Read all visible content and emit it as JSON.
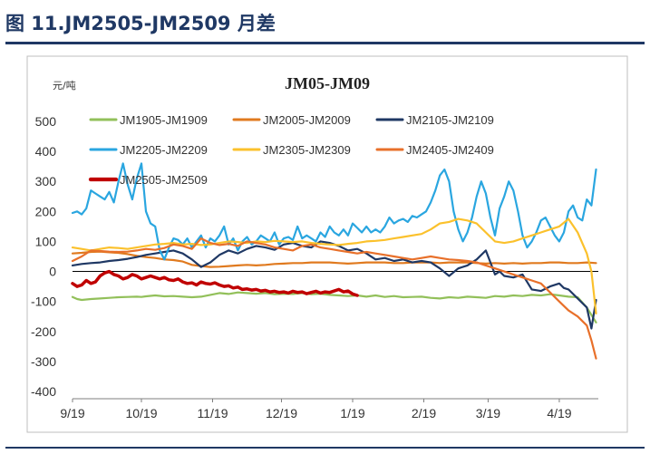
{
  "page": {
    "figure_title": "图 11.JM2505-JM2509 月差"
  },
  "chart_data": {
    "type": "line",
    "title": "JM05-JM09",
    "ylabel": "元/吨",
    "xlabel": "",
    "ylim": [
      -400,
      500
    ],
    "yticks": [
      500,
      400,
      300,
      200,
      100,
      0,
      -100,
      -200,
      -300,
      -400
    ],
    "xlim": [
      0,
      229
    ],
    "xticks": [
      {
        "label": "9/19",
        "x": 0
      },
      {
        "label": "10/19",
        "x": 30
      },
      {
        "label": "11/19",
        "x": 61
      },
      {
        "label": "12/19",
        "x": 91
      },
      {
        "label": "1/19",
        "x": 122
      },
      {
        "label": "2/19",
        "x": 153
      },
      {
        "label": "3/19",
        "x": 181
      },
      {
        "label": "4/19",
        "x": 212
      }
    ],
    "grid": false,
    "legend_position": "top",
    "series": [
      {
        "name": "JM1905-JM1909",
        "color": "#92c05a",
        "width": 2.2,
        "x": [
          0,
          2,
          4,
          8,
          12,
          16,
          20,
          24,
          28,
          30,
          32,
          36,
          40,
          44,
          48,
          52,
          56,
          60,
          64,
          68,
          72,
          76,
          80,
          84,
          88,
          92,
          96,
          100,
          104,
          108,
          112,
          116,
          120,
          124,
          128,
          132,
          136,
          140,
          144,
          148,
          152,
          156,
          160,
          164,
          168,
          172,
          176,
          180,
          184,
          188,
          192,
          196,
          200,
          204,
          208,
          212,
          216,
          220,
          224,
          228
        ],
        "y": [
          -85,
          -92,
          -95,
          -92,
          -90,
          -88,
          -86,
          -85,
          -84,
          -85,
          -83,
          -80,
          -83,
          -82,
          -84,
          -86,
          -84,
          -78,
          -72,
          -75,
          -70,
          -72,
          -74,
          -72,
          -76,
          -74,
          -75,
          -72,
          -76,
          -74,
          -78,
          -80,
          -82,
          -80,
          -84,
          -80,
          -85,
          -82,
          -86,
          -85,
          -84,
          -88,
          -90,
          -86,
          -88,
          -84,
          -86,
          -88,
          -82,
          -84,
          -80,
          -82,
          -78,
          -80,
          -76,
          -80,
          -84,
          -86,
          -120,
          -170
        ]
      },
      {
        "name": "JM2005-JM2009",
        "color": "#e07a1f",
        "width": 2.2,
        "x": [
          0,
          4,
          8,
          12,
          16,
          20,
          24,
          28,
          32,
          36,
          40,
          44,
          48,
          52,
          56,
          60,
          64,
          68,
          72,
          76,
          80,
          84,
          88,
          92,
          96,
          100,
          104,
          108,
          112,
          116,
          120,
          124,
          128,
          132,
          136,
          140,
          144,
          148,
          152,
          156,
          160,
          164,
          168,
          172,
          176,
          180,
          184,
          188,
          192,
          196,
          200,
          204,
          208,
          212,
          216,
          220,
          224,
          228
        ],
        "y": [
          60,
          62,
          65,
          66,
          64,
          62,
          58,
          52,
          48,
          45,
          40,
          38,
          33,
          22,
          18,
          15,
          16,
          18,
          20,
          22,
          20,
          22,
          25,
          26,
          28,
          28,
          30,
          30,
          30,
          28,
          26,
          28,
          30,
          30,
          30,
          28,
          28,
          30,
          30,
          30,
          28,
          30,
          30,
          30,
          28,
          26,
          28,
          26,
          28,
          26,
          28,
          28,
          30,
          30,
          28,
          28,
          30,
          28
        ]
      },
      {
        "name": "JM2105-JM2109",
        "color": "#1f3864",
        "width": 2.2,
        "x": [
          0,
          4,
          8,
          12,
          16,
          20,
          24,
          28,
          32,
          36,
          40,
          44,
          48,
          52,
          56,
          60,
          64,
          68,
          72,
          76,
          80,
          84,
          88,
          92,
          96,
          100,
          104,
          108,
          112,
          116,
          120,
          124,
          128,
          132,
          136,
          140,
          144,
          148,
          152,
          156,
          160,
          164,
          168,
          172,
          176,
          180,
          182,
          184,
          186,
          188,
          192,
          196,
          200,
          204,
          208,
          212,
          214,
          216,
          220,
          224,
          226,
          228
        ],
        "y": [
          20,
          25,
          28,
          30,
          35,
          38,
          42,
          48,
          55,
          60,
          65,
          70,
          60,
          40,
          15,
          30,
          55,
          70,
          60,
          75,
          85,
          80,
          72,
          90,
          95,
          85,
          80,
          100,
          95,
          85,
          70,
          75,
          60,
          40,
          45,
          35,
          40,
          30,
          35,
          30,
          10,
          -15,
          10,
          20,
          40,
          70,
          30,
          -10,
          0,
          -15,
          -20,
          -10,
          -60,
          -65,
          -50,
          -40,
          -55,
          -60,
          -90,
          -120,
          -190,
          -95
        ]
      },
      {
        "name": "JM2205-JM2209",
        "color": "#2aa6e0",
        "width": 2.2,
        "x": [
          0,
          2,
          4,
          6,
          8,
          10,
          12,
          14,
          16,
          18,
          20,
          22,
          24,
          26,
          28,
          30,
          32,
          34,
          36,
          38,
          40,
          42,
          44,
          46,
          48,
          50,
          52,
          54,
          56,
          58,
          60,
          62,
          64,
          66,
          68,
          70,
          72,
          74,
          76,
          78,
          80,
          82,
          84,
          86,
          88,
          90,
          92,
          94,
          96,
          98,
          100,
          102,
          104,
          106,
          108,
          110,
          112,
          114,
          116,
          118,
          120,
          122,
          124,
          126,
          128,
          130,
          132,
          134,
          136,
          138,
          140,
          142,
          144,
          146,
          148,
          150,
          152,
          154,
          156,
          158,
          160,
          162,
          164,
          166,
          168,
          170,
          172,
          174,
          176,
          178,
          180,
          182,
          184,
          186,
          188,
          190,
          192,
          194,
          196,
          198,
          200,
          202,
          204,
          206,
          208,
          210,
          212,
          214,
          216,
          218,
          220,
          222,
          224,
          226,
          228
        ],
        "y": [
          195,
          200,
          190,
          210,
          270,
          260,
          250,
          240,
          265,
          230,
          300,
          360,
          290,
          240,
          310,
          360,
          200,
          160,
          150,
          70,
          40,
          80,
          110,
          105,
          90,
          110,
          80,
          100,
          120,
          80,
          110,
          100,
          120,
          150,
          90,
          110,
          70,
          100,
          115,
          90,
          100,
          120,
          110,
          100,
          130,
          90,
          110,
          115,
          105,
          150,
          110,
          120,
          110,
          100,
          130,
          115,
          150,
          130,
          120,
          140,
          120,
          160,
          145,
          130,
          150,
          130,
          140,
          130,
          150,
          180,
          160,
          170,
          175,
          165,
          185,
          180,
          190,
          200,
          230,
          270,
          320,
          340,
          300,
          200,
          140,
          100,
          130,
          180,
          250,
          300,
          260,
          180,
          120,
          210,
          250,
          300,
          270,
          200,
          120,
          80,
          100,
          130,
          170,
          180,
          150,
          120,
          100,
          130,
          200,
          220,
          180,
          170,
          240,
          220,
          340
        ]
      },
      {
        "name": "JM2305-JM2309",
        "color": "#fbc12c",
        "width": 2.2,
        "x": [
          0,
          4,
          8,
          12,
          16,
          20,
          24,
          28,
          32,
          36,
          40,
          44,
          48,
          52,
          56,
          60,
          64,
          68,
          72,
          76,
          80,
          84,
          88,
          92,
          96,
          100,
          104,
          108,
          112,
          116,
          120,
          124,
          128,
          132,
          136,
          140,
          144,
          148,
          152,
          156,
          160,
          164,
          168,
          172,
          176,
          180,
          184,
          188,
          192,
          196,
          200,
          204,
          208,
          212,
          216,
          220,
          224,
          226,
          228
        ],
        "y": [
          80,
          75,
          70,
          75,
          80,
          78,
          75,
          80,
          85,
          90,
          92,
          95,
          90,
          92,
          88,
          90,
          95,
          100,
          98,
          95,
          100,
          98,
          102,
          100,
          98,
          100,
          95,
          92,
          90,
          88,
          92,
          95,
          100,
          102,
          105,
          110,
          115,
          120,
          125,
          140,
          160,
          165,
          175,
          170,
          160,
          130,
          100,
          95,
          100,
          110,
          120,
          130,
          140,
          150,
          175,
          130,
          60,
          0,
          -140
        ]
      },
      {
        "name": "JM2405-JM2409",
        "color": "#e8702a",
        "width": 2.2,
        "x": [
          0,
          4,
          8,
          12,
          16,
          20,
          24,
          28,
          32,
          36,
          40,
          44,
          48,
          52,
          56,
          60,
          64,
          68,
          72,
          76,
          80,
          84,
          88,
          92,
          96,
          100,
          104,
          108,
          112,
          116,
          120,
          124,
          128,
          132,
          136,
          140,
          144,
          148,
          152,
          156,
          160,
          164,
          168,
          172,
          176,
          180,
          184,
          188,
          192,
          196,
          200,
          204,
          208,
          212,
          216,
          220,
          224,
          226,
          228
        ],
        "y": [
          35,
          50,
          70,
          68,
          66,
          65,
          66,
          70,
          75,
          72,
          78,
          90,
          85,
          75,
          110,
          95,
          88,
          92,
          85,
          100,
          95,
          90,
          80,
          75,
          70,
          85,
          90,
          80,
          75,
          70,
          65,
          60,
          65,
          60,
          55,
          50,
          45,
          40,
          45,
          50,
          45,
          40,
          38,
          35,
          30,
          20,
          10,
          0,
          -10,
          -20,
          -30,
          -40,
          -70,
          -100,
          -130,
          -150,
          -180,
          -230,
          -290
        ]
      },
      {
        "name": "JM2505-JM2509",
        "color": "#c00000",
        "width": 3.5,
        "x": [
          0,
          2,
          4,
          6,
          8,
          10,
          12,
          14,
          16,
          18,
          20,
          22,
          24,
          26,
          28,
          30,
          32,
          34,
          36,
          38,
          40,
          42,
          44,
          46,
          48,
          50,
          52,
          54,
          56,
          58,
          60,
          62,
          64,
          66,
          68,
          70,
          72,
          74,
          76,
          78,
          80,
          82,
          84,
          86,
          88,
          90,
          92,
          94,
          96,
          98,
          100,
          102,
          104,
          106,
          108,
          110,
          112,
          114,
          116,
          118,
          120,
          122,
          124
        ],
        "y": [
          -40,
          -50,
          -45,
          -30,
          -40,
          -35,
          -15,
          -5,
          0,
          -10,
          -15,
          -25,
          -20,
          -10,
          -15,
          -25,
          -20,
          -15,
          -20,
          -25,
          -20,
          -28,
          -30,
          -25,
          -35,
          -40,
          -38,
          -45,
          -35,
          -40,
          -42,
          -38,
          -45,
          -50,
          -48,
          -55,
          -52,
          -60,
          -58,
          -62,
          -60,
          -65,
          -63,
          -68,
          -66,
          -70,
          -68,
          -72,
          -66,
          -70,
          -68,
          -74,
          -70,
          -66,
          -72,
          -68,
          -70,
          -65,
          -60,
          -68,
          -65,
          -75,
          -80
        ]
      }
    ]
  }
}
